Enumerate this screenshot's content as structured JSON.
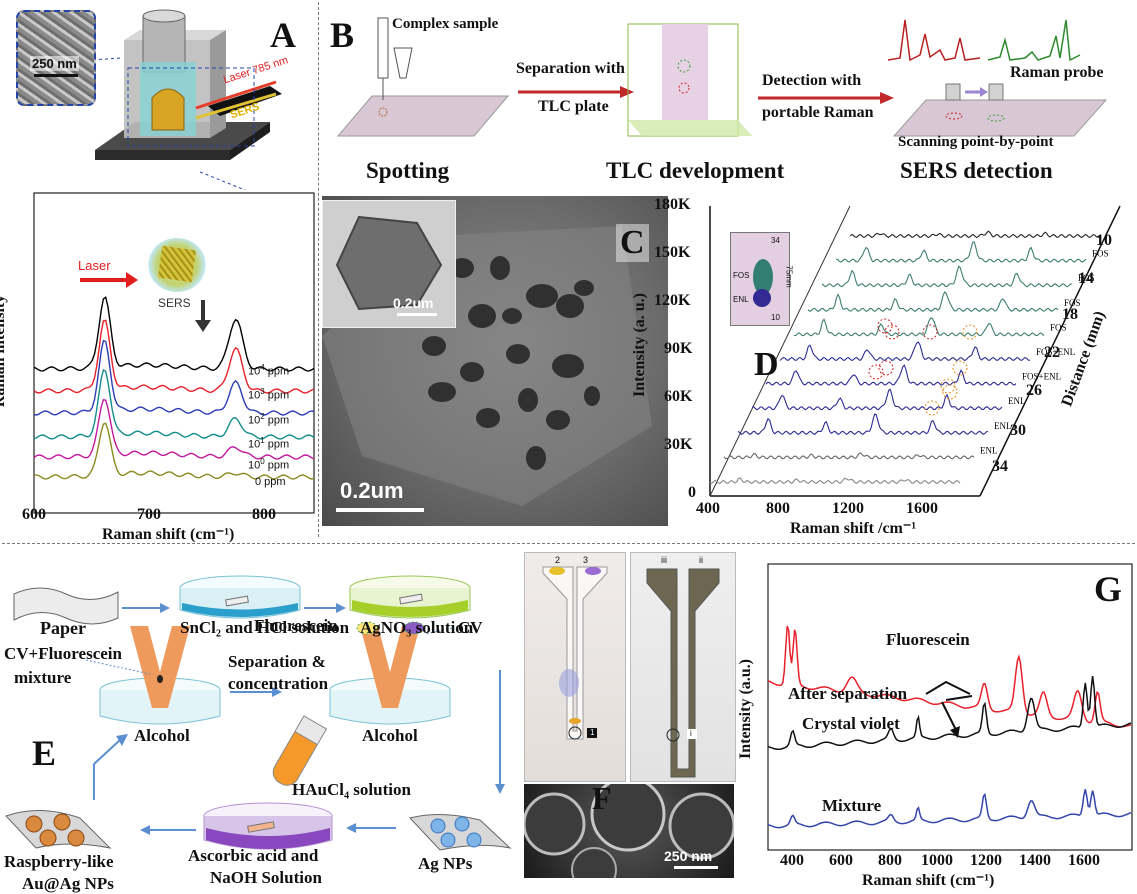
{
  "panels": {
    "A": {
      "label": "A",
      "scale_bar": "250 nm",
      "laser_label": "Laser 785 nm",
      "sers_label": "SERS",
      "inset_laser": "Laser",
      "inset_sers": "SERS",
      "ylabel": "Raman intensity",
      "xlabel": "Raman shift (cm⁻¹)",
      "x_ticks": [
        "600",
        "700",
        "800"
      ],
      "series": [
        {
          "label_base": "10",
          "label_exp": "4",
          "label_unit": " ppm",
          "color": "#000000"
        },
        {
          "label_base": "10",
          "label_exp": "3",
          "label_unit": " ppm",
          "color": "#e8202a"
        },
        {
          "label_base": "10",
          "label_exp": "2",
          "label_unit": " ppm",
          "color": "#2b3cb6"
        },
        {
          "label_base": "10",
          "label_exp": "1",
          "label_unit": " ppm",
          "color": "#138c8c"
        },
        {
          "label_base": "10",
          "label_exp": "0",
          "label_unit": " ppm",
          "color": "#c2189e"
        },
        {
          "label_base": "0 ppm",
          "label_exp": "",
          "label_unit": "",
          "color": "#8a8a1f"
        }
      ]
    },
    "B": {
      "label": "B",
      "complex_sample": "Complex sample",
      "arrow1_top": "Separation with",
      "arrow1_bottom": "TLC plate",
      "arrow2_top": "Detection with",
      "arrow2_bottom": "portable Raman",
      "raman_probe": "Raman probe",
      "scanning": "Scanning point-by-point",
      "step1": "Spotting",
      "step2": "TLC development",
      "step3": "SERS detection"
    },
    "C": {
      "label": "C",
      "inset_scale": "0.2um",
      "main_scale": "0.2um"
    },
    "D": {
      "label": "D",
      "y_ticks": [
        "180K",
        "150K",
        "120K",
        "90K",
        "60K",
        "30K",
        "0"
      ],
      "x_ticks": [
        "400",
        "800",
        "1200",
        "1600"
      ],
      "ylabel": "Intensity (a. u.)",
      "xlabel": "Raman shift /cm⁻¹",
      "depth_ticks": [
        "10",
        "14",
        "18",
        "22",
        "26",
        "30",
        "34"
      ],
      "depth_label": "Distance (mm)",
      "inset_top": "34",
      "inset_fos": "FOS",
      "inset_enl": "ENL",
      "inset_bottom": "10",
      "inset_len": "75mm",
      "trace_labels": [
        "FOS",
        "FOS",
        "FOS",
        "FOS",
        "FOS+ENL",
        "FOS+ENL",
        "ENL",
        "ENL",
        "ENL"
      ]
    },
    "E": {
      "label": "E",
      "paper": "Paper",
      "sncl2": "SnCl₂ and HCl solution",
      "agno3": "AgNO₃ solution",
      "cv_fluo": "CV+Fluorescein",
      "mixture": "mixture",
      "sep_conc_1": "Separation &",
      "sep_conc_2": "concentration",
      "alcohol_1": "Alcohol",
      "fluorescein": "Fluorescein",
      "cv": "CV",
      "alcohol_2": "Alcohol",
      "haucl4": "HAuCl₄ solution",
      "ascorbic_1": "Ascorbic acid and",
      "ascorbic_2": "NaOH Solution",
      "ag_nps": "Ag NPs",
      "raspberry_1": "Raspberry-like",
      "raspberry_2": "Au@Ag NPs"
    },
    "F": {
      "label": "F",
      "arrow_2": "2",
      "arrow_3": "3",
      "marker_1": "1",
      "arrow_iii": "iii",
      "arrow_ii": "ii",
      "marker_i": "i",
      "scale": "250 nm"
    },
    "G": {
      "label": "G",
      "ylabel": "Intensity (a.u.)",
      "xlabel": "Raman shift (cm⁻¹)",
      "x_ticks": [
        "400",
        "600",
        "800",
        "1000",
        "1200",
        "1400",
        "1600"
      ],
      "fluorescein": "Fluorescein",
      "after_sep": "After separation",
      "crystal_violet": "Crystal violet",
      "mixture": "Mixture",
      "colors": {
        "fluorescein": "#e8202a",
        "crystal_violet": "#111111",
        "mixture": "#3344aa"
      }
    }
  },
  "chart_data": [
    {
      "type": "line",
      "panel": "A",
      "xlabel": "Raman shift (cm⁻¹)",
      "ylabel": "Raman intensity",
      "xlim": [
        600,
        850
      ],
      "series": [
        {
          "name": "10^4 ppm"
        },
        {
          "name": "10^3 ppm"
        },
        {
          "name": "10^2 ppm"
        },
        {
          "name": "10^1 ppm"
        },
        {
          "name": "10^0 ppm"
        },
        {
          "name": "0 ppm"
        }
      ],
      "peaks": [
        663,
        780
      ]
    },
    {
      "type": "line",
      "panel": "D",
      "xlabel": "Raman shift /cm⁻¹",
      "ylabel": "Intensity (a. u.)",
      "xlim": [
        400,
        1900
      ],
      "ylim": [
        0,
        180000
      ],
      "depth_axis": "Distance (mm)",
      "depths": [
        10,
        14,
        18,
        22,
        26,
        30,
        34
      ]
    },
    {
      "type": "line",
      "panel": "G",
      "xlabel": "Raman shift (cm⁻¹)",
      "ylabel": "Intensity (a.u.)",
      "xlim": [
        300,
        1780
      ],
      "series": [
        {
          "name": "Fluorescein"
        },
        {
          "name": "Crystal violet"
        },
        {
          "name": "Mixture"
        }
      ],
      "peaks": [
        400,
        800,
        910,
        1180,
        1370,
        1590,
        1620
      ]
    }
  ]
}
